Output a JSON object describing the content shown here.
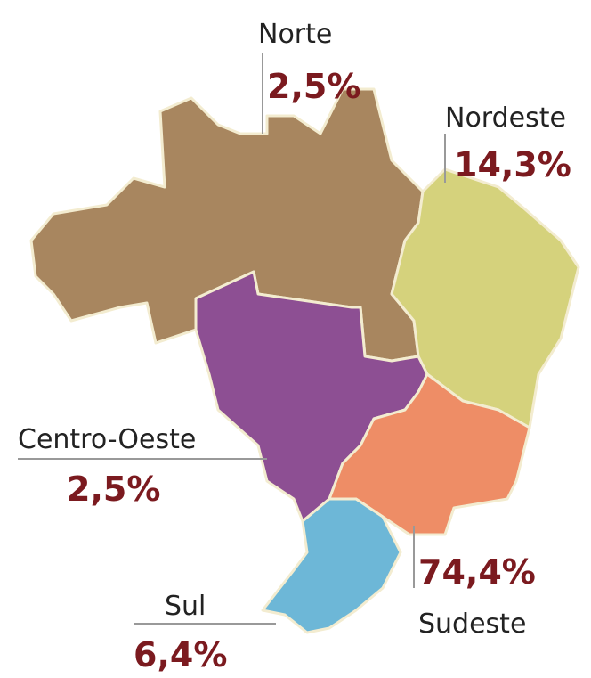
{
  "regions": [
    {
      "name": "Norte",
      "value": 2.5,
      "value_label": "2,5%",
      "color": "#a8865f"
    },
    {
      "name": "Nordeste",
      "value": 14.3,
      "value_label": "14,3%",
      "color": "#d5d27c"
    },
    {
      "name": "Centro-Oeste",
      "value": 2.5,
      "value_label": "2,5%",
      "color": "#8d4f93"
    },
    {
      "name": "Sudeste",
      "value": 74.4,
      "value_label": "74,4%",
      "color": "#ee8d66"
    },
    {
      "name": "Sul",
      "value": 6.4,
      "value_label": "6,4%",
      "color": "#6db7d7"
    }
  ]
}
